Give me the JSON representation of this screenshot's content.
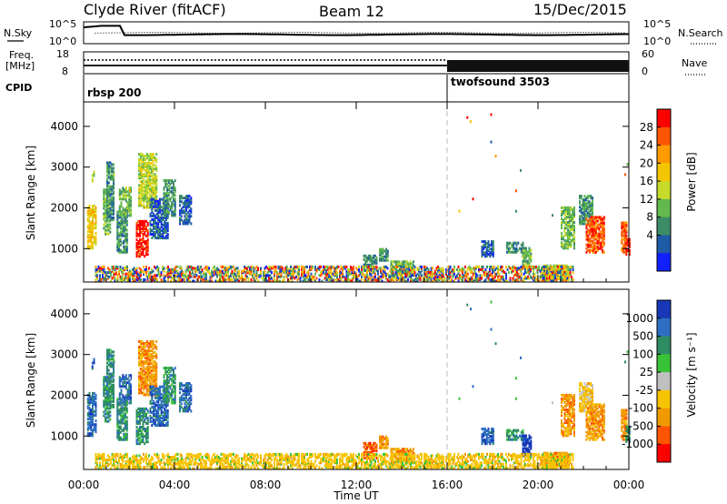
{
  "header": {
    "title": "Clyde River (fitACF)",
    "beam": "Beam 12",
    "date": "15/Dec/2015"
  },
  "sky_panel": {
    "left_label": "N.Sky",
    "right_label": "N.Search",
    "y_top": "10^5",
    "y_bottom": "10^0",
    "yr_top": "10^5",
    "yr_bottom": "10^0"
  },
  "freq_panel": {
    "left_label_1": "Freq.",
    "left_label_2": "[MHz]",
    "right_label": "Nave",
    "y_top": "18",
    "y_bottom": "8",
    "yr_top": "60",
    "yr_bottom": "0"
  },
  "cpid_panel": {
    "label": "CPID",
    "program_1": "rbsp 200",
    "program_2": "twofsound 3503"
  },
  "power_panel": {
    "ylabel": "Slant Range [km]",
    "colorbar_label": "Power [dB]",
    "colorbar_ticks": [
      "28",
      "24",
      "20",
      "16",
      "12",
      "8",
      "4"
    ],
    "colors": [
      "#ff0000",
      "#ff5500",
      "#ff9a00",
      "#f3c600",
      "#c6da2a",
      "#63b84e",
      "#3c8c68",
      "#1f5aa6",
      "#1020ff"
    ]
  },
  "velocity_panel": {
    "ylabel": "Slant Range [km]",
    "colorbar_label": "Velocity [m s⁻¹]",
    "colorbar_ticks": [
      "1000",
      "500",
      "100",
      "25",
      "-25",
      "-100",
      "-500",
      "-1000"
    ],
    "colors": [
      "#1838b8",
      "#2d6ec2",
      "#2f8c63",
      "#38c238",
      "#c0c0c0",
      "#f7c400",
      "#f09a00",
      "#ff5500",
      "#ff0000"
    ]
  },
  "x_axis": {
    "label": "Time UT",
    "ticks": [
      "00:00",
      "04:00",
      "08:00",
      "12:00",
      "16:00",
      "20:00",
      "00:00"
    ]
  },
  "y_axis": {
    "ticks": [
      "1000",
      "2000",
      "3000",
      "4000"
    ]
  },
  "chart_data": {
    "type": "heatmap",
    "title": "Clyde River (fitACF)",
    "subtitle": "Beam 12",
    "date": "15/Dec/2015",
    "xlabel": "Time UT",
    "ylabel": "Slant Range [km]",
    "x_range_hours": [
      0,
      24
    ],
    "y_range_km": [
      180,
      4600
    ],
    "x_tick_hours": [
      0,
      4,
      8,
      12,
      16,
      20,
      24
    ],
    "y_tick_km": [
      1000,
      2000,
      3000,
      4000
    ],
    "cpid_change_hour": 16.0,
    "power_colorbar": [
      4,
      8,
      12,
      16,
      20,
      24,
      28
    ],
    "velocity_colorbar": [
      1000,
      500,
      100,
      25,
      -25,
      -100,
      -500,
      -1000
    ],
    "echo_regions": [
      {
        "t_start": 0.15,
        "t_end": 0.55,
        "r_min": 1000,
        "r_max": 2050,
        "power_level": 3,
        "velocity_level": 1
      },
      {
        "t_start": 0.35,
        "t_end": 0.45,
        "r_min": 2600,
        "r_max": 2900,
        "power_level": 4,
        "velocity_level": 1
      },
      {
        "t_start": 0.85,
        "t_end": 1.15,
        "r_min": 1350,
        "r_max": 2450,
        "power_level": 5,
        "velocity_level": 2
      },
      {
        "t_start": 1.0,
        "t_end": 1.35,
        "r_min": 1700,
        "r_max": 3100,
        "power_level": 6,
        "velocity_level": 2
      },
      {
        "t_start": 1.45,
        "t_end": 1.9,
        "r_min": 900,
        "r_max": 1900,
        "power_level": 6,
        "velocity_level": 2
      },
      {
        "t_start": 1.55,
        "t_end": 2.1,
        "r_min": 1800,
        "r_max": 2500,
        "power_level": 5,
        "velocity_level": 1
      },
      {
        "t_start": 2.3,
        "t_end": 2.85,
        "r_min": 800,
        "r_max": 1700,
        "power_level": 0,
        "velocity_level": 2
      },
      {
        "t_start": 2.4,
        "t_end": 3.2,
        "r_min": 2000,
        "r_max": 3350,
        "power_level": 4,
        "velocity_level": 6
      },
      {
        "t_start": 2.9,
        "t_end": 3.7,
        "r_min": 1250,
        "r_max": 2200,
        "power_level": 7,
        "velocity_level": 1
      },
      {
        "t_start": 3.5,
        "t_end": 4.0,
        "r_min": 1800,
        "r_max": 2700,
        "power_level": 6,
        "velocity_level": 2
      },
      {
        "t_start": 4.2,
        "t_end": 4.75,
        "r_min": 1600,
        "r_max": 2300,
        "power_level": 7,
        "velocity_level": 1
      },
      {
        "t_start": 8.9,
        "t_end": 9.2,
        "r_min": 350,
        "r_max": 550,
        "power_level": 5,
        "velocity_level": 5
      },
      {
        "t_start": 12.3,
        "t_end": 12.9,
        "r_min": 450,
        "r_max": 850,
        "power_level": 6,
        "velocity_level": 7
      },
      {
        "t_start": 13.0,
        "t_end": 13.4,
        "r_min": 700,
        "r_max": 1000,
        "power_level": 6,
        "velocity_level": 6
      },
      {
        "t_start": 13.5,
        "t_end": 14.5,
        "r_min": 350,
        "r_max": 700,
        "power_level": 5,
        "velocity_level": 6
      },
      {
        "t_start": 17.5,
        "t_end": 18.0,
        "r_min": 800,
        "r_max": 1200,
        "power_level": 7,
        "velocity_level": 1
      },
      {
        "t_start": 18.6,
        "t_end": 19.4,
        "r_min": 900,
        "r_max": 1150,
        "power_level": 6,
        "velocity_level": 2
      },
      {
        "t_start": 19.3,
        "t_end": 19.7,
        "r_min": 500,
        "r_max": 1000,
        "power_level": 5,
        "velocity_level": 0
      },
      {
        "t_start": 20.1,
        "t_end": 21.3,
        "r_min": 250,
        "r_max": 600,
        "power_level": 4,
        "velocity_level": 6
      },
      {
        "t_start": 21.0,
        "t_end": 21.6,
        "r_min": 1000,
        "r_max": 2000,
        "power_level": 5,
        "velocity_level": 6
      },
      {
        "t_start": 21.8,
        "t_end": 22.4,
        "r_min": 1600,
        "r_max": 2300,
        "power_level": 6,
        "velocity_level": 5
      },
      {
        "t_start": 22.1,
        "t_end": 22.9,
        "r_min": 900,
        "r_max": 1800,
        "power_level": 1,
        "velocity_level": 6
      },
      {
        "t_start": 23.65,
        "t_end": 23.9,
        "r_min": 900,
        "r_max": 1650,
        "power_level": 1,
        "velocity_level": 6
      },
      {
        "t_start": 23.85,
        "t_end": 24.0,
        "r_min": 850,
        "r_max": 1250,
        "power_level": 0,
        "velocity_level": 2
      }
    ],
    "ground_scatter_band": {
      "r_min": 200,
      "r_max": 560,
      "t_start": 0.5,
      "t_end": 21.5,
      "power_level": 7,
      "velocity_level": 5
    },
    "sparse_echoes": [
      {
        "t": 16.85,
        "r": 4250
      },
      {
        "t": 17.0,
        "r": 4150
      },
      {
        "t": 17.9,
        "r": 4320
      },
      {
        "t": 17.9,
        "r": 3650
      },
      {
        "t": 18.1,
        "r": 3300
      },
      {
        "t": 19.2,
        "r": 2950
      },
      {
        "t": 17.1,
        "r": 2250
      },
      {
        "t": 16.5,
        "r": 1950
      },
      {
        "t": 19.0,
        "r": 2450
      },
      {
        "t": 23.9,
        "r": 3100
      },
      {
        "t": 23.8,
        "r": 2850
      },
      {
        "t": 1.3,
        "r": 2850
      },
      {
        "t": 2.0,
        "r": 2450
      },
      {
        "t": 19.0,
        "r": 1950
      },
      {
        "t": 20.6,
        "r": 1850
      }
    ]
  }
}
